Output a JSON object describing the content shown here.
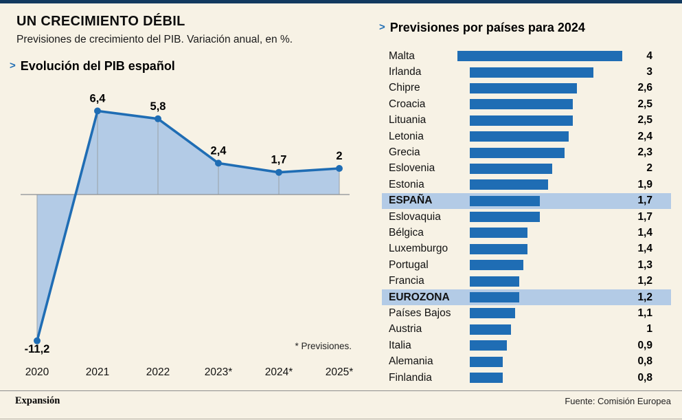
{
  "header": {
    "title": "UN CRECIMIENTO DÉBIL",
    "subtitle": "Previsiones de crecimiento del PIB. Variación anual, en %."
  },
  "icons": {
    "caret": ">"
  },
  "colors": {
    "background": "#f7f2e5",
    "bar": "#1f6db4",
    "line": "#1f6db4",
    "area": "#b3cbe6",
    "highlight": "#b3cbe6",
    "top_rule": "#12395f"
  },
  "footer": {
    "brand": "Expansión",
    "source": "Fuente: Comisión Europea"
  },
  "chart_data": [
    {
      "type": "line",
      "title": "Evolución del PIB español",
      "categories": [
        "2020",
        "2021",
        "2022",
        "2023*",
        "2024*",
        "2025*"
      ],
      "values": [
        -11.2,
        6.4,
        5.8,
        2.4,
        1.7,
        2
      ],
      "point_labels": [
        "-11,2",
        "6,4",
        "5,8",
        "2,4",
        "1,7",
        "2"
      ],
      "ylim": [
        -12,
        7
      ],
      "baseline": 0,
      "note": "* Previsiones.",
      "area_fill": true,
      "grid": "vertical-to-baseline"
    },
    {
      "type": "bar",
      "title": "Previsiones por países para 2024",
      "orientation": "horizontal",
      "xlim": [
        0,
        4
      ],
      "rows": [
        {
          "label": "Malta",
          "value": 4,
          "display": "4",
          "highlight": false
        },
        {
          "label": "Irlanda",
          "value": 3,
          "display": "3",
          "highlight": false
        },
        {
          "label": "Chipre",
          "value": 2.6,
          "display": "2,6",
          "highlight": false
        },
        {
          "label": "Croacia",
          "value": 2.5,
          "display": "2,5",
          "highlight": false
        },
        {
          "label": "Lituania",
          "value": 2.5,
          "display": "2,5",
          "highlight": false
        },
        {
          "label": "Letonia",
          "value": 2.4,
          "display": "2,4",
          "highlight": false
        },
        {
          "label": "Grecia",
          "value": 2.3,
          "display": "2,3",
          "highlight": false
        },
        {
          "label": "Eslovenia",
          "value": 2,
          "display": "2",
          "highlight": false
        },
        {
          "label": "Estonia",
          "value": 1.9,
          "display": "1,9",
          "highlight": false
        },
        {
          "label": "ESPAÑA",
          "value": 1.7,
          "display": "1,7",
          "highlight": true
        },
        {
          "label": "Eslovaquia",
          "value": 1.7,
          "display": "1,7",
          "highlight": false
        },
        {
          "label": "Bélgica",
          "value": 1.4,
          "display": "1,4",
          "highlight": false
        },
        {
          "label": "Luxemburgo",
          "value": 1.4,
          "display": "1,4",
          "highlight": false
        },
        {
          "label": "Portugal",
          "value": 1.3,
          "display": "1,3",
          "highlight": false
        },
        {
          "label": "Francia",
          "value": 1.2,
          "display": "1,2",
          "highlight": false
        },
        {
          "label": "EUROZONA",
          "value": 1.2,
          "display": "1,2",
          "highlight": true
        },
        {
          "label": "Países Bajos",
          "value": 1.1,
          "display": "1,1",
          "highlight": false
        },
        {
          "label": "Austria",
          "value": 1,
          "display": "1",
          "highlight": false
        },
        {
          "label": "Italia",
          "value": 0.9,
          "display": "0,9",
          "highlight": false
        },
        {
          "label": "Alemania",
          "value": 0.8,
          "display": "0,8",
          "highlight": false
        },
        {
          "label": "Finlandia",
          "value": 0.8,
          "display": "0,8",
          "highlight": false
        }
      ]
    }
  ]
}
